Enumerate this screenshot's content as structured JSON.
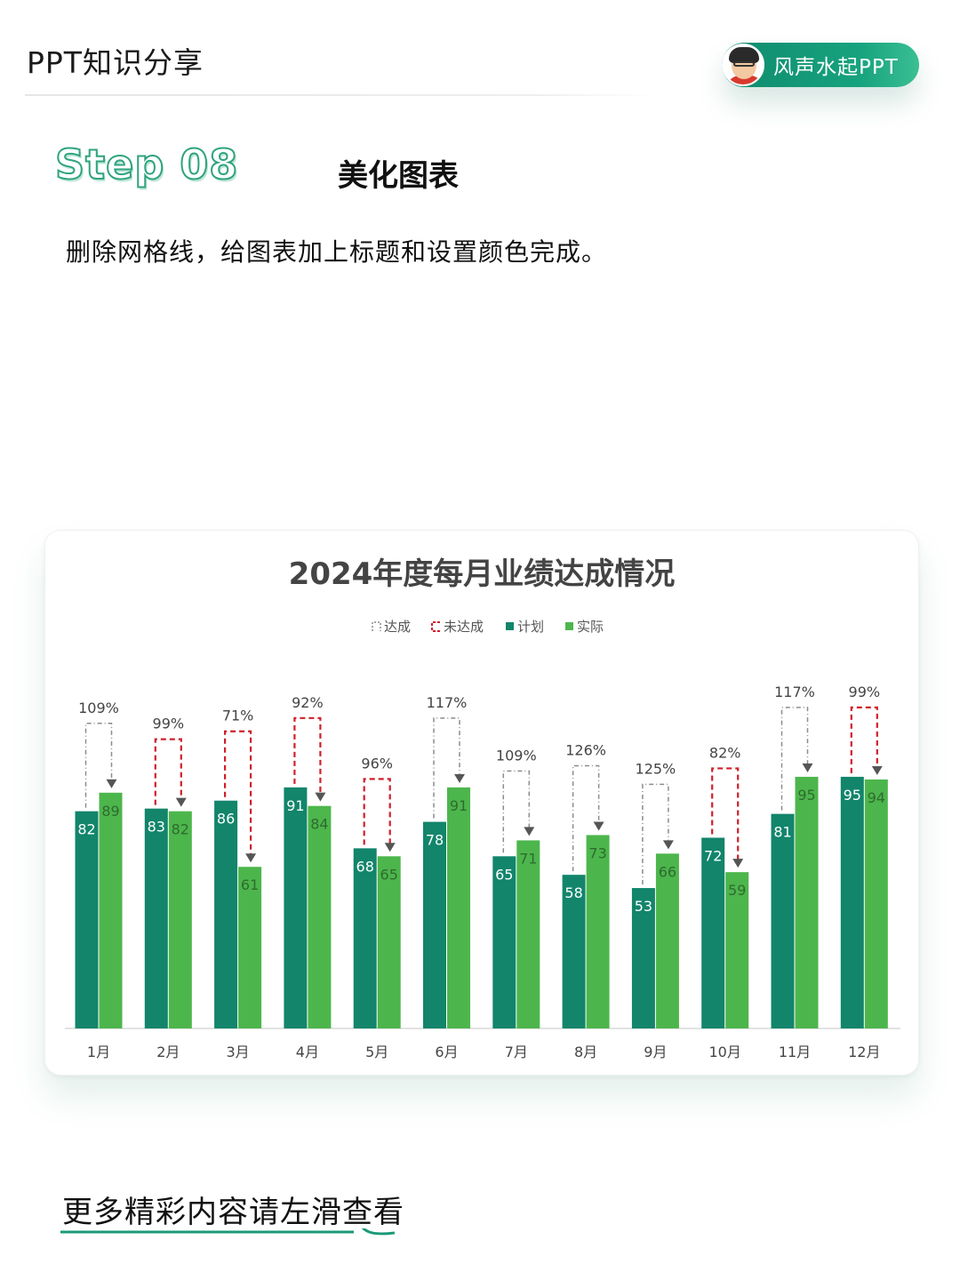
{
  "header": {
    "series_title": "PPT知识分享",
    "author": "风声水起PPT"
  },
  "step": {
    "label": "Step 08",
    "title": "美化图表",
    "description": "删除网格线，给图表加上标题和设置颜色完成。"
  },
  "colors": {
    "plan": "#12856b",
    "actual": "#4cb64c",
    "achieved_arrow": "#8c8c8c",
    "missed_arrow": "#d01f2a",
    "accent": "#1a9a78"
  },
  "chart_data": {
    "type": "bar",
    "title": "2024年度每月业绩达成情况",
    "legend": [
      "达成",
      "未达成",
      "计划",
      "实际"
    ],
    "legend_position": "top",
    "categories": [
      "1月",
      "2月",
      "3月",
      "4月",
      "5月",
      "6月",
      "7月",
      "8月",
      "9月",
      "10月",
      "11月",
      "12月"
    ],
    "series": [
      {
        "name": "计划",
        "values": [
          82,
          83,
          86,
          91,
          68,
          78,
          65,
          58,
          53,
          72,
          81,
          95
        ]
      },
      {
        "name": "实际",
        "values": [
          89,
          82,
          61,
          84,
          65,
          91,
          71,
          73,
          66,
          59,
          95,
          94
        ]
      }
    ],
    "rates": [
      "109%",
      "99%",
      "71%",
      "92%",
      "96%",
      "117%",
      "109%",
      "126%",
      "125%",
      "82%",
      "117%",
      "99%"
    ],
    "ylim": [
      0,
      100
    ],
    "grid": false
  },
  "footer": {
    "text": "更多精彩内容请左滑查看"
  }
}
